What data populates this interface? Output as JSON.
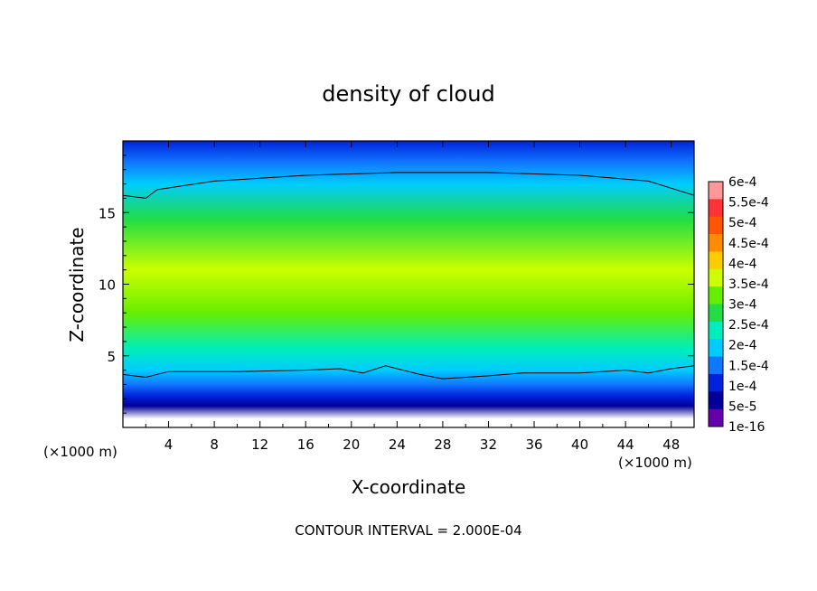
{
  "chart_data": {
    "type": "heatmap",
    "title": "density of cloud",
    "xlabel": "X-coordinate",
    "ylabel": "Z-coordinate",
    "x_unit_left": "(×1000 m)",
    "x_unit_right": "(×1000 m)",
    "xlim": [
      0,
      50
    ],
    "ylim": [
      0,
      20
    ],
    "x_ticks": [
      4,
      8,
      12,
      16,
      20,
      24,
      28,
      32,
      36,
      40,
      44,
      48
    ],
    "y_ticks": [
      5,
      10,
      15
    ],
    "footer": "CONTOUR INTERVAL = 2.000E-04",
    "colorbar": {
      "labels": [
        "6e-4",
        "5.5e-4",
        "5e-4",
        "4.5e-4",
        "4e-4",
        "3.5e-4",
        "3e-4",
        "2.5e-4",
        "2e-4",
        "1.5e-4",
        "1e-4",
        "5e-5",
        "1e-16"
      ],
      "colors": [
        "#ff9999",
        "#ff3333",
        "#ff5500",
        "#ff8c00",
        "#ffcc00",
        "#ccff00",
        "#66ee00",
        "#22dd44",
        "#00eebb",
        "#00ccff",
        "#1177ff",
        "#0022dd",
        "#000099",
        "#6600aa"
      ]
    },
    "vertical_profile": [
      {
        "z": 0.6,
        "value": 0
      },
      {
        "z": 1.5,
        "value": 1e-05
      },
      {
        "z": 2.2,
        "value": 5e-05
      },
      {
        "z": 3.0,
        "value": 0.0001
      },
      {
        "z": 4.0,
        "value": 0.00017
      },
      {
        "z": 5.5,
        "value": 0.00022
      },
      {
        "z": 8.0,
        "value": 0.00031
      },
      {
        "z": 11.0,
        "value": 0.00036
      },
      {
        "z": 14.5,
        "value": 0.00027
      },
      {
        "z": 17.0,
        "value": 0.00019
      },
      {
        "z": 18.5,
        "value": 0.00014
      },
      {
        "z": 20.0,
        "value": 9e-05
      }
    ],
    "contour_lines": [
      {
        "level": 0.0002,
        "label": "lower",
        "points": [
          [
            0,
            3.7
          ],
          [
            2,
            3.5
          ],
          [
            4,
            3.9
          ],
          [
            10,
            3.9
          ],
          [
            16,
            4.0
          ],
          [
            19,
            4.1
          ],
          [
            21,
            3.8
          ],
          [
            23,
            4.3
          ],
          [
            26,
            3.7
          ],
          [
            28,
            3.4
          ],
          [
            32,
            3.6
          ],
          [
            35,
            3.8
          ],
          [
            40,
            3.8
          ],
          [
            44,
            4.0
          ],
          [
            46,
            3.8
          ],
          [
            48,
            4.1
          ],
          [
            50,
            4.3
          ]
        ]
      },
      {
        "level": 0.0002,
        "label": "upper",
        "points": [
          [
            0,
            16.2
          ],
          [
            2,
            16.0
          ],
          [
            3,
            16.6
          ],
          [
            8,
            17.2
          ],
          [
            16,
            17.6
          ],
          [
            24,
            17.8
          ],
          [
            32,
            17.8
          ],
          [
            40,
            17.6
          ],
          [
            46,
            17.2
          ],
          [
            50,
            16.2
          ]
        ]
      }
    ]
  }
}
